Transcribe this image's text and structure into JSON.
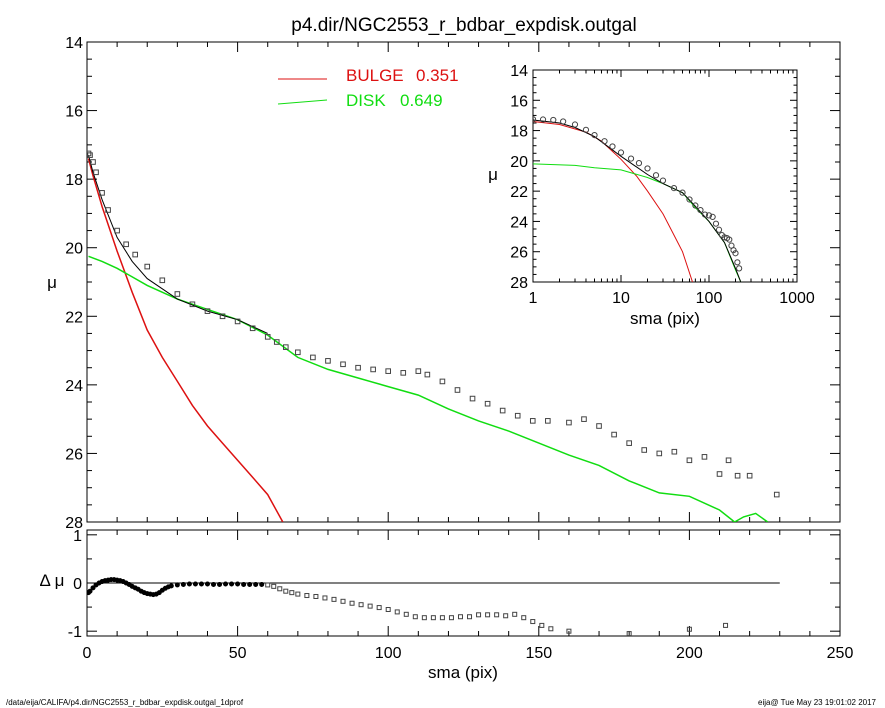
{
  "title": "p4.dir/NGC2553_r_bdbar_expdisk.outgal",
  "footer_left": "/data/eija/CALIFA/p4.dir/NGC2553_r_bdbar_expdisk.outgal_1dprof",
  "footer_right": "eija@  Tue May 23 19:01:02 2017",
  "colors": {
    "bulge": "#dd1111",
    "disk": "#11dd11",
    "model": "#000000",
    "data": "#444444"
  },
  "legend": [
    {
      "label": "BULGE",
      "value": "0.351",
      "color": "#dd1111"
    },
    {
      "label": "DISK",
      "value": "0.649",
      "color": "#11dd11"
    }
  ],
  "chart_data": [
    {
      "id": "main",
      "type": "line",
      "xlabel": "sma (pix)",
      "ylabel": "μ",
      "xlim": [
        0,
        250
      ],
      "ylim": [
        28,
        14
      ],
      "y_inverted": true,
      "xticks": [
        "0",
        "50",
        "100",
        "150",
        "200",
        "250"
      ],
      "yticks": [
        "14",
        "16",
        "18",
        "20",
        "22",
        "24",
        "26",
        "28"
      ],
      "series": [
        {
          "name": "BULGE",
          "x": [
            0.5,
            2,
            5,
            10,
            15,
            20,
            25,
            30,
            35,
            40,
            45,
            50,
            55,
            60,
            65
          ],
          "y": [
            17.4,
            17.9,
            18.8,
            20.1,
            21.3,
            22.4,
            23.2,
            23.9,
            24.6,
            25.2,
            25.7,
            26.2,
            26.7,
            27.2,
            28.0
          ]
        },
        {
          "name": "DISK",
          "x": [
            0.5,
            5,
            10,
            15,
            20,
            30,
            40,
            50,
            60,
            70,
            80,
            90,
            100,
            110,
            120,
            130,
            140,
            150,
            160,
            170,
            180,
            190,
            200,
            210,
            215,
            218,
            222,
            226
          ],
          "y": [
            20.25,
            20.4,
            20.6,
            20.85,
            21.1,
            21.5,
            21.8,
            22.1,
            22.55,
            23.2,
            23.55,
            23.8,
            24.05,
            24.3,
            24.7,
            25.05,
            25.35,
            25.7,
            26.05,
            26.35,
            26.8,
            27.15,
            27.25,
            27.65,
            28.0,
            27.85,
            27.75,
            28.0
          ]
        },
        {
          "name": "Model",
          "x": [
            0.5,
            2,
            5,
            10,
            15,
            20,
            30,
            40,
            50,
            60
          ],
          "y": [
            17.3,
            17.8,
            18.6,
            19.7,
            20.4,
            20.9,
            21.5,
            21.85,
            22.1,
            22.5
          ]
        },
        {
          "name": "Data",
          "x": [
            0.5,
            1,
            2,
            3,
            5,
            7,
            10,
            13,
            16,
            20,
            25,
            30,
            35,
            40,
            45,
            50,
            55,
            60,
            63,
            66,
            70,
            75,
            80,
            85,
            90,
            95,
            100,
            105,
            110,
            113,
            118,
            123,
            128,
            133,
            138,
            143,
            148,
            153,
            160,
            165,
            170,
            175,
            180,
            185,
            190,
            195,
            200,
            205,
            210,
            213,
            216,
            220,
            229
          ],
          "y": [
            17.25,
            17.3,
            17.5,
            17.8,
            18.4,
            18.9,
            19.5,
            19.9,
            20.2,
            20.55,
            20.95,
            21.35,
            21.65,
            21.85,
            22.0,
            22.15,
            22.35,
            22.6,
            22.75,
            22.9,
            23.05,
            23.2,
            23.3,
            23.4,
            23.5,
            23.55,
            23.6,
            23.65,
            23.6,
            23.7,
            23.9,
            24.15,
            24.4,
            24.55,
            24.75,
            24.9,
            25.05,
            25.05,
            25.1,
            25.0,
            25.2,
            25.45,
            25.7,
            25.9,
            26.0,
            25.95,
            26.2,
            26.1,
            26.6,
            26.2,
            26.65,
            26.65,
            27.2
          ]
        }
      ]
    },
    {
      "id": "inset",
      "type": "line",
      "xlabel": "sma (pix)",
      "ylabel": "μ",
      "xscale": "log",
      "xlim": [
        1,
        1000
      ],
      "ylim": [
        28,
        14
      ],
      "y_inverted": true,
      "xticks": [
        "1",
        "10",
        "100",
        "1000"
      ],
      "yticks": [
        "14",
        "16",
        "18",
        "20",
        "22",
        "24",
        "26",
        "28"
      ],
      "series": [
        {
          "name": "BULGE",
          "x": [
            1,
            2,
            4,
            6,
            10,
            15,
            20,
            30,
            40,
            50,
            65
          ],
          "y": [
            17.4,
            17.6,
            18.1,
            18.7,
            19.9,
            21.0,
            22.0,
            23.5,
            24.9,
            26.0,
            28.0
          ]
        },
        {
          "name": "DISK",
          "x": [
            1,
            3,
            5,
            10,
            20,
            30,
            50,
            70,
            100,
            150,
            200,
            230
          ],
          "y": [
            20.2,
            20.3,
            20.45,
            20.6,
            21.1,
            21.5,
            22.1,
            23.1,
            24.0,
            25.4,
            27.2,
            28.0
          ]
        },
        {
          "name": "Model",
          "x": [
            1,
            2,
            3,
            5,
            10,
            20,
            30,
            50,
            70,
            100,
            150,
            200,
            230
          ],
          "y": [
            17.3,
            17.5,
            17.8,
            18.4,
            19.7,
            20.9,
            21.5,
            22.1,
            23.0,
            24.0,
            25.4,
            27.1,
            28.0
          ]
        },
        {
          "name": "Data",
          "x": [
            1,
            1.3,
            1.7,
            2.2,
            3,
            4,
            5,
            6.5,
            8,
            10,
            13,
            16,
            20,
            25,
            30,
            40,
            50,
            60,
            70,
            80,
            90,
            100,
            110,
            120,
            130,
            140,
            150,
            160,
            170,
            180,
            190,
            200,
            210,
            220
          ],
          "y": [
            17.25,
            17.27,
            17.3,
            17.4,
            17.6,
            17.95,
            18.3,
            18.7,
            19.05,
            19.45,
            19.85,
            20.15,
            20.5,
            20.95,
            21.3,
            21.8,
            22.1,
            22.55,
            22.95,
            23.25,
            23.55,
            23.6,
            23.7,
            24.15,
            24.55,
            24.9,
            25.05,
            25.1,
            25.2,
            25.6,
            25.9,
            26.1,
            26.7,
            27.1
          ]
        }
      ]
    },
    {
      "id": "residual",
      "type": "scatter",
      "xlabel": "sma (pix)",
      "ylabel": "Δ μ",
      "xlim": [
        0,
        250
      ],
      "ylim": [
        -1.1,
        1.1
      ],
      "xticks": [
        "0",
        "50",
        "100",
        "150",
        "200",
        "250"
      ],
      "yticks": [
        "1",
        "0",
        "-1"
      ],
      "zero_line_x": [
        0,
        230
      ],
      "points": {
        "x": [
          0.5,
          1,
          2,
          3,
          4,
          5,
          6,
          7,
          8,
          9,
          10,
          11,
          12,
          13,
          14,
          15,
          16,
          17,
          18,
          19,
          20,
          21,
          22,
          23,
          24,
          25,
          26,
          27,
          28,
          30,
          32,
          34,
          36,
          38,
          40,
          42,
          44,
          46,
          48,
          50,
          52,
          54,
          56,
          58,
          60,
          62,
          64,
          66,
          68,
          70,
          73,
          76,
          79,
          82,
          85,
          88,
          91,
          94,
          97,
          100,
          103,
          106,
          109,
          112,
          115,
          118,
          121,
          124,
          127,
          130,
          133,
          136,
          139,
          142,
          145,
          148,
          151,
          154,
          160,
          180,
          200,
          212
        ],
        "y": [
          -0.2,
          -0.17,
          -0.1,
          -0.04,
          0.0,
          0.03,
          0.05,
          0.06,
          0.07,
          0.07,
          0.06,
          0.05,
          0.03,
          0.0,
          -0.03,
          -0.07,
          -0.1,
          -0.13,
          -0.17,
          -0.2,
          -0.22,
          -0.23,
          -0.24,
          -0.23,
          -0.2,
          -0.15,
          -0.11,
          -0.08,
          -0.06,
          -0.04,
          -0.03,
          -0.02,
          -0.02,
          -0.02,
          -0.02,
          -0.03,
          -0.03,
          -0.02,
          -0.02,
          -0.02,
          -0.03,
          -0.03,
          -0.03,
          -0.03,
          -0.04,
          -0.07,
          -0.12,
          -0.17,
          -0.2,
          -0.23,
          -0.26,
          -0.28,
          -0.31,
          -0.34,
          -0.38,
          -0.42,
          -0.45,
          -0.48,
          -0.51,
          -0.55,
          -0.6,
          -0.65,
          -0.7,
          -0.72,
          -0.72,
          -0.72,
          -0.72,
          -0.7,
          -0.7,
          -0.66,
          -0.66,
          -0.66,
          -0.68,
          -0.65,
          -0.72,
          -0.8,
          -0.88,
          -0.95,
          -1.0,
          -1.05,
          -0.96,
          -0.88
        ]
      }
    }
  ]
}
